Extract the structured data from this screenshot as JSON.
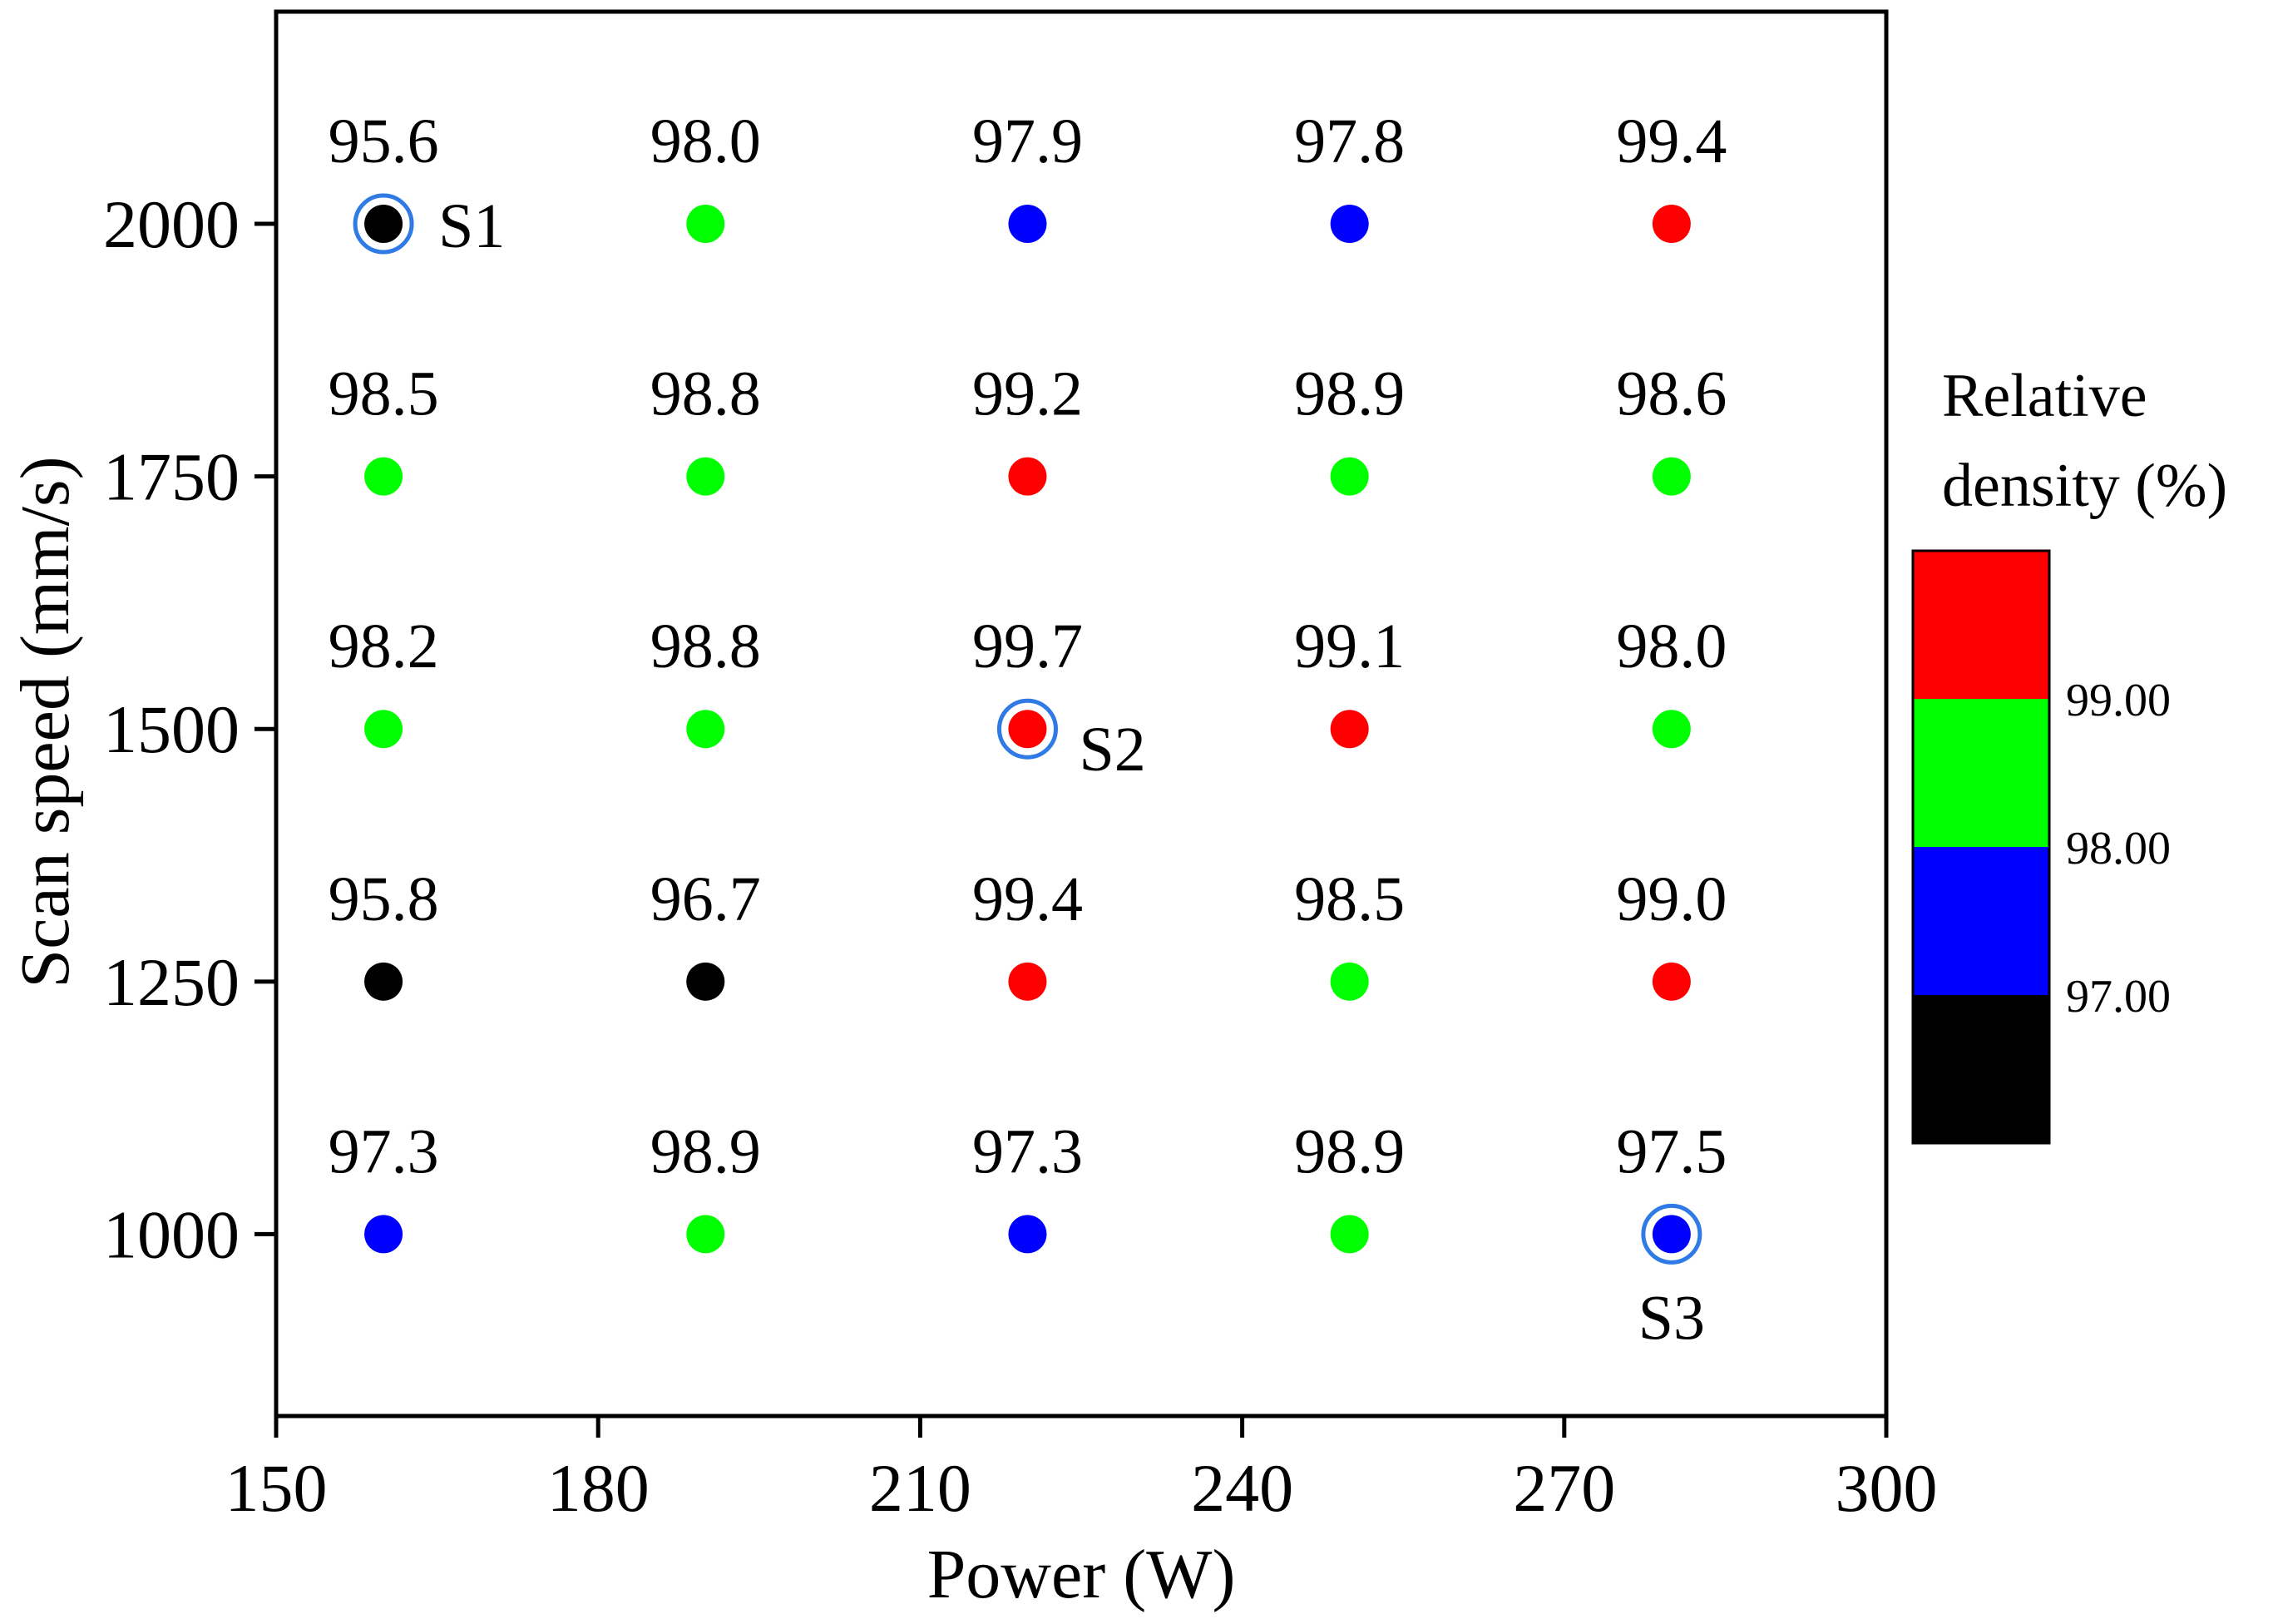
{
  "chart_data": {
    "type": "scatter",
    "title": "",
    "xlabel": "Power (W)",
    "ylabel": "Scan speed (mm/s)",
    "xlim": [
      150,
      300
    ],
    "ylim": [
      820,
      2210
    ],
    "xticks": [
      150,
      180,
      210,
      240,
      270,
      300
    ],
    "yticks": [
      1000,
      1250,
      1500,
      1750,
      2000
    ],
    "grid": false,
    "legend": "none",
    "points": [
      {
        "x": 160,
        "y": 2000,
        "value": 95.6,
        "label": "95.6",
        "highlight": "S1"
      },
      {
        "x": 190,
        "y": 2000,
        "value": 98.0,
        "label": "98.0"
      },
      {
        "x": 220,
        "y": 2000,
        "value": 97.9,
        "label": "97.9"
      },
      {
        "x": 250,
        "y": 2000,
        "value": 97.8,
        "label": "97.8"
      },
      {
        "x": 280,
        "y": 2000,
        "value": 99.4,
        "label": "99.4"
      },
      {
        "x": 160,
        "y": 1750,
        "value": 98.5,
        "label": "98.5"
      },
      {
        "x": 190,
        "y": 1750,
        "value": 98.8,
        "label": "98.8"
      },
      {
        "x": 220,
        "y": 1750,
        "value": 99.2,
        "label": "99.2"
      },
      {
        "x": 250,
        "y": 1750,
        "value": 98.9,
        "label": "98.9"
      },
      {
        "x": 280,
        "y": 1750,
        "value": 98.6,
        "label": "98.6"
      },
      {
        "x": 160,
        "y": 1500,
        "value": 98.2,
        "label": "98.2"
      },
      {
        "x": 190,
        "y": 1500,
        "value": 98.8,
        "label": "98.8"
      },
      {
        "x": 220,
        "y": 1500,
        "value": 99.7,
        "label": "99.7",
        "highlight": "S2"
      },
      {
        "x": 250,
        "y": 1500,
        "value": 99.1,
        "label": "99.1"
      },
      {
        "x": 280,
        "y": 1500,
        "value": 98.0,
        "label": "98.0"
      },
      {
        "x": 160,
        "y": 1250,
        "value": 95.8,
        "label": "95.8"
      },
      {
        "x": 190,
        "y": 1250,
        "value": 96.7,
        "label": "96.7"
      },
      {
        "x": 220,
        "y": 1250,
        "value": 99.4,
        "label": "99.4"
      },
      {
        "x": 250,
        "y": 1250,
        "value": 98.5,
        "label": "98.5"
      },
      {
        "x": 280,
        "y": 1250,
        "value": 99.0,
        "label": "99.0"
      },
      {
        "x": 160,
        "y": 1000,
        "value": 97.3,
        "label": "97.3"
      },
      {
        "x": 190,
        "y": 1000,
        "value": 98.9,
        "label": "98.9"
      },
      {
        "x": 220,
        "y": 1000,
        "value": 97.3,
        "label": "97.3"
      },
      {
        "x": 250,
        "y": 1000,
        "value": 98.9,
        "label": "98.9"
      },
      {
        "x": 280,
        "y": 1000,
        "value": 97.5,
        "label": "97.5",
        "highlight": "S3"
      }
    ],
    "colorbar": {
      "title_lines": [
        "Relative",
        "density (%)"
      ],
      "bins": [
        {
          "from": 99.0,
          "to": 100.0,
          "color": "#ff0000"
        },
        {
          "from": 98.0,
          "to": 99.0,
          "color": "#00ff00"
        },
        {
          "from": 97.0,
          "to": 98.0,
          "color": "#0000ff"
        },
        {
          "from": 96.0,
          "to": 97.0,
          "color": "#000000"
        }
      ],
      "tick_labels": [
        "99.00",
        "98.00",
        "97.00"
      ]
    },
    "highlight_ring_color": "#2f7ae5"
  }
}
